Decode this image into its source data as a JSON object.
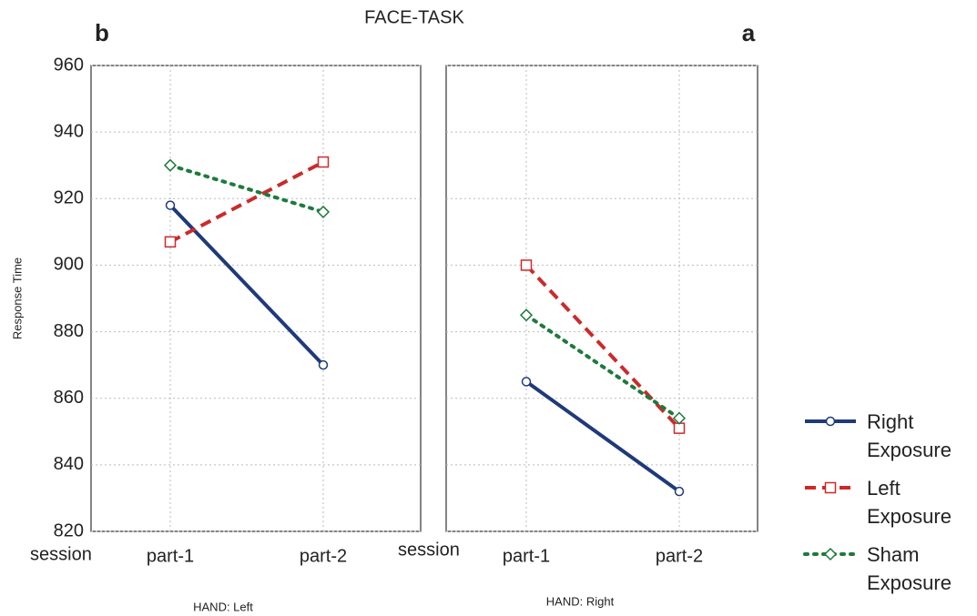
{
  "chart_data": [
    {
      "type": "line",
      "title": "FACE-TASK",
      "panel_label": "b",
      "ylabel": "Response Time",
      "x_title": "session",
      "xlabel": "HAND: Left",
      "categories": [
        "part-1",
        "part-2"
      ],
      "series": [
        {
          "color": "#1f3a7a",
          "line_style": "solid",
          "marker": "circle",
          "values": [
            918,
            870
          ]
        },
        {
          "color": "#cc2a2a",
          "line_style": "dashed",
          "marker": "square",
          "values": [
            907,
            931
          ]
        },
        {
          "color": "#1e7a3c",
          "line_style": "dotted",
          "marker": "diamond",
          "values": [
            930,
            916
          ]
        }
      ],
      "ylim": [
        820,
        960
      ],
      "yticks": [
        820,
        840,
        860,
        880,
        900,
        920,
        940,
        960
      ],
      "grid": true
    },
    {
      "type": "line",
      "panel_label": "a",
      "x_title": "session",
      "xlabel": "HAND: Right",
      "categories": [
        "part-1",
        "part-2"
      ],
      "series": [
        {
          "name": "Right Exposure",
          "color": "#1f3a7a",
          "line_style": "solid",
          "marker": "circle",
          "values": [
            865,
            832
          ]
        },
        {
          "name": "Left Exposure",
          "color": "#cc2a2a",
          "line_style": "dashed",
          "marker": "square",
          "values": [
            900,
            851
          ]
        },
        {
          "name": "Sham Exposure",
          "color": "#1e7a3c",
          "line_style": "dotted",
          "marker": "diamond",
          "values": [
            885,
            854
          ]
        }
      ],
      "ylim": [
        820,
        960
      ],
      "yticks": [
        820,
        840,
        860,
        880,
        900,
        920,
        940,
        960
      ],
      "grid": true
    }
  ]
}
